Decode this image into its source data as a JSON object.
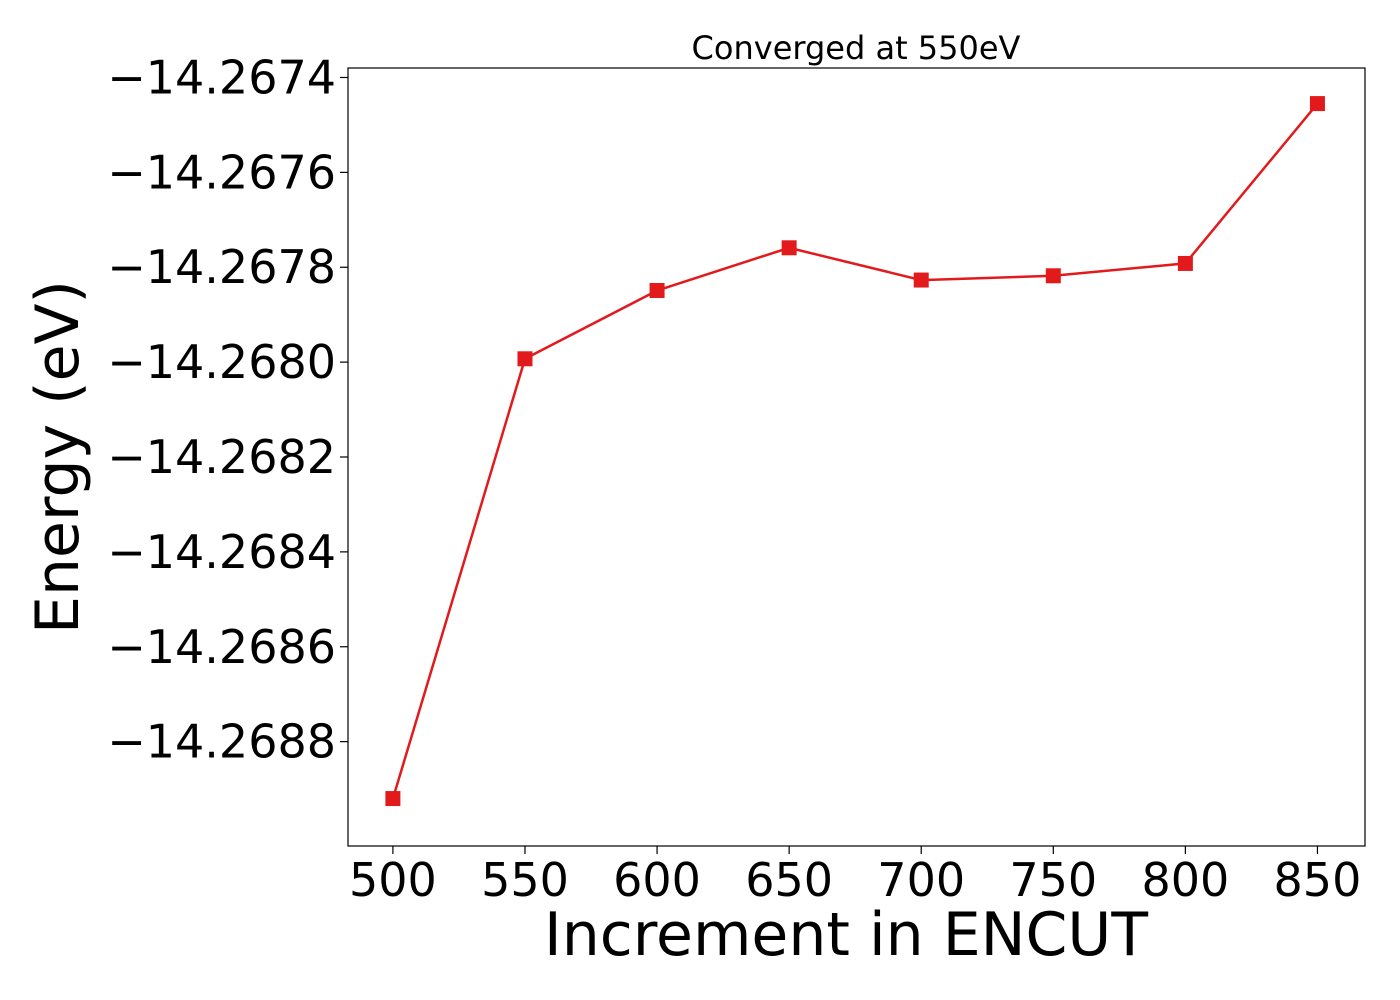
{
  "chart_data": {
    "type": "line",
    "title": "Converged at 550eV",
    "xlabel": "Increment in ENCUT",
    "ylabel": "Energy (eV)",
    "xlim": [
      483,
      868
    ],
    "ylim": [
      -14.26902,
      -14.26738
    ],
    "x_ticks": [
      500,
      550,
      600,
      650,
      700,
      750,
      800,
      850
    ],
    "x_tick_labels": [
      "500",
      "550",
      "600",
      "650",
      "700",
      "750",
      "800",
      "850"
    ],
    "y_ticks": [
      -14.2674,
      -14.2676,
      -14.2678,
      -14.268,
      -14.2682,
      -14.2684,
      -14.2686,
      -14.2688
    ],
    "y_tick_labels": [
      "−14.2674",
      "−14.2676",
      "−14.2678",
      "−14.2680",
      "−14.2682",
      "−14.2684",
      "−14.2686",
      "−14.2688"
    ],
    "grid": false,
    "legend": "none",
    "series": [
      {
        "color": "#e31a1c",
        "marker": "square",
        "x": [
          500,
          550,
          600,
          650,
          700,
          750,
          800,
          850
        ],
        "y": [
          -14.26892,
          -14.267993,
          -14.267849,
          -14.267759,
          -14.267827,
          -14.267818,
          -14.267792,
          -14.267455
        ]
      }
    ]
  }
}
